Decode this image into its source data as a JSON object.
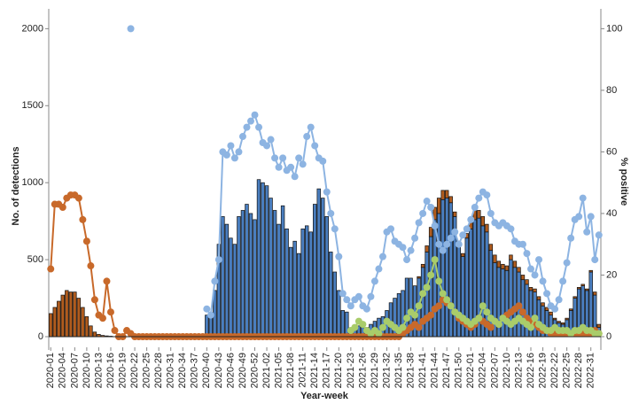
{
  "chart_data": {
    "type": "bar",
    "x_label": "Year-week",
    "y_label": "No. of detections",
    "y2_label": "% positive",
    "ylim": [
      0,
      2100
    ],
    "yticks": [
      0,
      500,
      1000,
      1500,
      2000
    ],
    "y2lim": [
      0,
      105
    ],
    "y2ticks": [
      0,
      20,
      40,
      60,
      80,
      100
    ],
    "categories": [
      "2020-01",
      null,
      null,
      "2020-04",
      null,
      null,
      "2020-07",
      null,
      null,
      "2020-10",
      null,
      null,
      "2020-13",
      null,
      null,
      "2020-16",
      null,
      null,
      "2020-19",
      null,
      null,
      "2020-22",
      null,
      null,
      "2020-25",
      null,
      null,
      "2020-28",
      null,
      null,
      "2020-31",
      null,
      null,
      "2020-34",
      null,
      null,
      "2020-37",
      null,
      null,
      "2020-40",
      null,
      null,
      "2020-43",
      null,
      null,
      "2020-46",
      null,
      null,
      "2020-49",
      null,
      null,
      "2020-52",
      null,
      null,
      "2021-02",
      null,
      null,
      "2021-05",
      null,
      null,
      "2021-08",
      null,
      null,
      "2021-11",
      null,
      null,
      "2021-14",
      null,
      null,
      "2021-17",
      null,
      null,
      "2021-20",
      null,
      null,
      "2021-23",
      null,
      null,
      "2021-26",
      null,
      null,
      "2021-29",
      null,
      null,
      "2021-32",
      null,
      null,
      "2021-35",
      null,
      null,
      "2021-38",
      null,
      null,
      "2021-41",
      null,
      null,
      "2021-44",
      null,
      null,
      "2021-47",
      null,
      null,
      "2021-50",
      null,
      null,
      "2022-01",
      null,
      null,
      "2022-04",
      null,
      null,
      "2022-07",
      null,
      null,
      "2022-10",
      null,
      null,
      "2022-13",
      null,
      null,
      "2022-16",
      null,
      null,
      "2022-19",
      null,
      null,
      "2022-22",
      null,
      null,
      "2022-25",
      null,
      null,
      "2022-28",
      null,
      null,
      "2022-31",
      null,
      null
    ],
    "series": [
      {
        "type": "bar",
        "color": "#4a7ebf",
        "values": [
          0,
          0,
          0,
          0,
          0,
          0,
          0,
          0,
          0,
          0,
          0,
          0,
          0,
          0,
          0,
          0,
          0,
          0,
          0,
          0,
          0,
          0,
          0,
          0,
          0,
          0,
          0,
          0,
          0,
          0,
          0,
          0,
          0,
          0,
          0,
          0,
          0,
          0,
          0,
          140,
          140,
          300,
          600,
          780,
          730,
          640,
          600,
          780,
          820,
          860,
          800,
          760,
          1020,
          1000,
          980,
          900,
          820,
          730,
          850,
          700,
          580,
          620,
          540,
          700,
          720,
          680,
          860,
          960,
          900,
          780,
          550,
          420,
          300,
          170,
          160,
          50,
          60,
          70,
          60,
          60,
          80,
          100,
          120,
          130,
          170,
          220,
          250,
          280,
          300,
          380,
          380,
          330,
          380,
          450,
          550,
          650,
          760,
          800,
          890,
          900,
          870,
          780,
          600,
          520,
          640,
          700,
          760,
          770,
          720,
          680,
          560,
          480,
          450,
          440,
          430,
          500,
          450,
          420,
          370,
          340,
          300,
          290,
          240,
          200,
          170,
          140,
          110,
          90,
          80,
          110,
          170,
          250,
          310,
          330,
          300,
          420,
          270,
          60
        ]
      },
      {
        "type": "bar",
        "color": "#b05c1e",
        "values": [
          150,
          190,
          230,
          270,
          300,
          290,
          290,
          250,
          190,
          130,
          70,
          30,
          15,
          8,
          5,
          3,
          0,
          0,
          0,
          0,
          0,
          0,
          0,
          0,
          0,
          0,
          0,
          0,
          0,
          0,
          0,
          0,
          0,
          0,
          0,
          0,
          0,
          0,
          0,
          0,
          0,
          0,
          0,
          0,
          0,
          0,
          0,
          0,
          0,
          0,
          0,
          0,
          0,
          0,
          0,
          0,
          0,
          0,
          0,
          0,
          0,
          0,
          0,
          0,
          0,
          0,
          0,
          0,
          0,
          0,
          0,
          0,
          0,
          0,
          0,
          0,
          0,
          0,
          0,
          0,
          0,
          0,
          0,
          0,
          0,
          0,
          0,
          0,
          0,
          0,
          0,
          0,
          10,
          20,
          40,
          60,
          80,
          100,
          60,
          50,
          40,
          30,
          20,
          20,
          30,
          40,
          60,
          50,
          60,
          50,
          40,
          50,
          40,
          30,
          30,
          30,
          40,
          30,
          30,
          30,
          20,
          20,
          20,
          20,
          20,
          20,
          10,
          10,
          10,
          10,
          10,
          10,
          10,
          10,
          10,
          10,
          20,
          20
        ]
      },
      {
        "type": "line",
        "axis": "y2",
        "color": "#8db4e2",
        "values": [
          null,
          null,
          null,
          null,
          null,
          null,
          null,
          null,
          null,
          null,
          null,
          null,
          null,
          null,
          null,
          null,
          null,
          null,
          null,
          null,
          100,
          null,
          null,
          null,
          null,
          null,
          null,
          null,
          null,
          null,
          null,
          null,
          null,
          null,
          null,
          null,
          null,
          null,
          null,
          9,
          7,
          18,
          25,
          60,
          59,
          62,
          58,
          60,
          65,
          68,
          70,
          72,
          68,
          63,
          62,
          64,
          58,
          55,
          58,
          54,
          55,
          52,
          58,
          56,
          65,
          68,
          62,
          58,
          57,
          47,
          40,
          35,
          26,
          14,
          12,
          10,
          12,
          13,
          10,
          9,
          13,
          18,
          22,
          26,
          34,
          35,
          31,
          30,
          29,
          25,
          28,
          32,
          37,
          40,
          44,
          42,
          36,
          30,
          28,
          30,
          32,
          34,
          30,
          33,
          35,
          38,
          42,
          45,
          47,
          46,
          40,
          37,
          36,
          37,
          36,
          35,
          31,
          30,
          30,
          27,
          22,
          20,
          25,
          18,
          14,
          10,
          9,
          12,
          18,
          24,
          32,
          38,
          39,
          45,
          34,
          39,
          25,
          33
        ]
      },
      {
        "type": "line",
        "axis": "y2",
        "color": "#c8692a",
        "values": [
          22,
          43,
          43,
          42,
          45,
          46,
          46,
          45,
          38,
          31,
          23,
          12,
          7,
          6,
          18,
          8,
          2,
          0,
          0,
          2,
          1,
          0,
          0,
          0,
          0,
          0,
          0,
          0,
          0,
          0,
          0,
          0,
          0,
          0,
          0,
          0,
          0,
          0,
          0,
          0,
          0,
          0,
          0,
          0,
          0,
          0,
          0,
          0,
          0,
          0,
          0,
          0,
          0,
          0,
          0,
          0,
          0,
          0,
          0,
          0,
          0,
          0,
          0,
          0,
          0,
          0,
          0,
          0,
          0,
          0,
          0,
          0,
          0,
          0,
          0,
          0,
          0,
          0,
          0,
          0,
          0,
          0,
          0,
          0,
          0,
          0,
          0,
          0,
          1,
          2,
          3,
          4,
          3,
          5,
          6,
          7,
          9,
          10,
          12,
          11,
          10,
          8,
          6,
          5,
          4,
          3,
          4,
          6,
          5,
          4,
          3,
          5,
          4,
          6,
          7,
          8,
          9,
          10,
          8,
          6,
          5,
          4,
          3,
          2,
          2,
          1,
          1,
          1,
          1,
          1,
          1,
          1,
          1,
          1,
          1,
          1,
          2,
          1
        ]
      },
      {
        "type": "line",
        "axis": "y2",
        "color": "#a9cc6a",
        "values": [
          null,
          null,
          null,
          null,
          null,
          null,
          null,
          null,
          null,
          null,
          null,
          null,
          null,
          null,
          null,
          null,
          null,
          null,
          null,
          null,
          null,
          null,
          null,
          null,
          null,
          null,
          null,
          null,
          null,
          null,
          null,
          null,
          null,
          null,
          null,
          null,
          null,
          null,
          null,
          null,
          null,
          null,
          null,
          null,
          null,
          null,
          null,
          null,
          null,
          null,
          null,
          null,
          null,
          null,
          null,
          null,
          null,
          null,
          null,
          null,
          null,
          null,
          null,
          null,
          null,
          null,
          null,
          null,
          null,
          null,
          null,
          null,
          null,
          null,
          null,
          2,
          3,
          5,
          4,
          2,
          1,
          2,
          1,
          3,
          5,
          4,
          3,
          2,
          3,
          6,
          8,
          7,
          10,
          14,
          16,
          20,
          25,
          18,
          14,
          12,
          10,
          8,
          7,
          6,
          5,
          4,
          5,
          6,
          10,
          8,
          6,
          5,
          4,
          6,
          5,
          4,
          5,
          6,
          5,
          4,
          3,
          6,
          4,
          3,
          2,
          2,
          3,
          2,
          2,
          2,
          1,
          2,
          2,
          3,
          2,
          2,
          1,
          1
        ]
      }
    ]
  }
}
